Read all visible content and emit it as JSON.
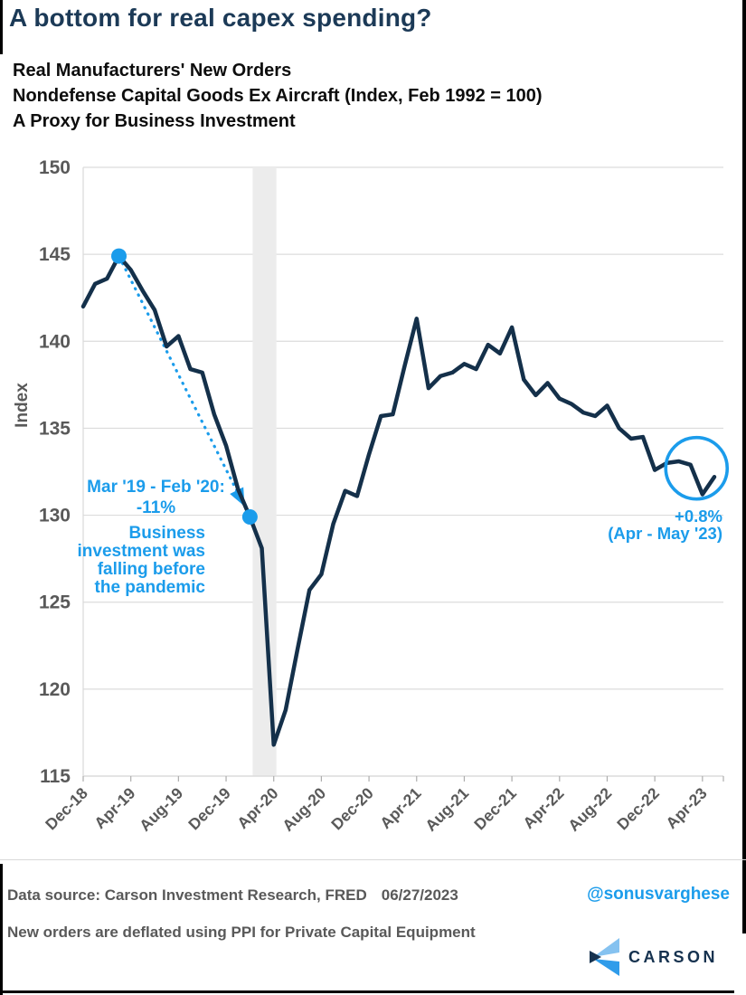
{
  "header": {
    "title": "A bottom for real capex spending?",
    "subtitle_lines": [
      "Real Manufacturers' New Orders",
      "Nondefense Capital Goods Ex Aircraft (Index, Feb 1992 = 100)",
      "A Proxy for Business Investment"
    ]
  },
  "chart_data": {
    "type": "line",
    "title": "Real Manufacturers' New Orders, Nondefense Capital Goods Ex Aircraft",
    "xlabel": "",
    "ylabel": "Index",
    "ylim": [
      115,
      150
    ],
    "yticks": [
      115,
      120,
      125,
      130,
      135,
      140,
      145,
      150
    ],
    "grid": true,
    "x": [
      "Dec-18",
      "Jan-19",
      "Feb-19",
      "Mar-19",
      "Apr-19",
      "May-19",
      "Jun-19",
      "Jul-19",
      "Aug-19",
      "Sep-19",
      "Oct-19",
      "Nov-19",
      "Dec-19",
      "Jan-20",
      "Feb-20",
      "Mar-20",
      "Apr-20",
      "May-20",
      "Jun-20",
      "Jul-20",
      "Aug-20",
      "Sep-20",
      "Oct-20",
      "Nov-20",
      "Dec-20",
      "Jan-21",
      "Feb-21",
      "Mar-21",
      "Apr-21",
      "May-21",
      "Jun-21",
      "Jul-21",
      "Aug-21",
      "Sep-21",
      "Oct-21",
      "Nov-21",
      "Dec-21",
      "Jan-22",
      "Feb-22",
      "Mar-22",
      "Apr-22",
      "May-22",
      "Jun-22",
      "Jul-22",
      "Aug-22",
      "Sep-22",
      "Oct-22",
      "Nov-22",
      "Dec-22",
      "Jan-23",
      "Feb-23",
      "Mar-23",
      "Apr-23",
      "May-23"
    ],
    "xtick_labels": [
      "Dec-18",
      "Apr-19",
      "Aug-19",
      "Dec-19",
      "Apr-20",
      "Aug-20",
      "Dec-20",
      "Apr-21",
      "Aug-21",
      "Dec-21",
      "Apr-22",
      "Aug-22",
      "Dec-22",
      "Apr-23"
    ],
    "series": [
      {
        "name": "Real Manufacturers' New Orders (Index, Feb 1992 = 100)",
        "values": [
          142.0,
          143.3,
          143.6,
          144.9,
          144.1,
          142.9,
          141.8,
          139.7,
          140.3,
          138.4,
          138.2,
          135.8,
          134.0,
          131.5,
          129.9,
          128.1,
          116.8,
          118.8,
          122.3,
          125.7,
          126.6,
          129.5,
          131.4,
          131.1,
          133.5,
          135.7,
          135.8,
          138.6,
          141.3,
          137.3,
          138.0,
          138.2,
          138.7,
          138.4,
          139.8,
          139.3,
          140.8,
          137.8,
          136.9,
          137.6,
          136.7,
          136.4,
          135.9,
          135.7,
          136.3,
          135.0,
          134.4,
          134.5,
          132.6,
          133.0,
          133.1,
          132.9,
          131.2,
          132.2
        ]
      }
    ],
    "recession_band": {
      "from": "Feb-20",
      "to": "Apr-20"
    },
    "markers": [
      {
        "x": "Mar-19",
        "y": 144.9
      },
      {
        "x": "Feb-20",
        "y": 129.9
      }
    ],
    "trend_arrow": {
      "from_x": "Mar-19",
      "from_y": 144.9,
      "to_x": "Feb-20",
      "to_y": 129.9,
      "style": "dotted"
    },
    "highlight_circle": {
      "from_x": "Feb-23",
      "to_x": "May-23",
      "center_value": 132.7
    }
  },
  "annotations": {
    "drop_label": "Mar '19 - Feb '20:\n-11%",
    "note_label": "Business\ninvestment was\nfalling before\nthe pandemic",
    "change_label": "+0.8%\n(Apr - May '23)"
  },
  "footer": {
    "data_source": "Data source: Carson Investment Research, FRED",
    "date": "06/27/2023",
    "handle": "@sonusvarghese",
    "note": "New orders are deflated using PPI for Private Capital Equipment",
    "logo_text": "CARSON"
  },
  "colors": {
    "accent_blue": "#1B9CEB",
    "line_navy": "#14304A",
    "title_navy": "#1C3A57",
    "text_gray": "#595959",
    "gridline": "#DCDCDC",
    "band_gray": "#ECECEC"
  }
}
